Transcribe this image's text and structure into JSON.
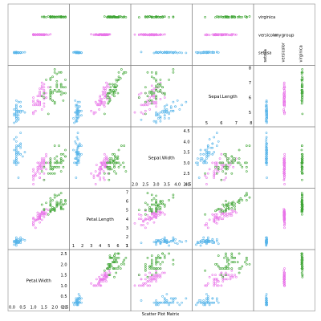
{
  "chart_data": {
    "type": "scatter",
    "subtype": "scatter-plot-matrix",
    "xlabel": "Scatter Plot Matrix",
    "grid": false,
    "variables": [
      {
        "key": "PetalWidth",
        "label": "Petal.Width",
        "range": [
          0,
          2.5
        ],
        "ticks": [
          {
            "v": 0,
            "t": "0.0"
          },
          {
            "v": 0.5,
            "t": "0.5"
          },
          {
            "v": 1.0,
            "t": "1.0"
          },
          {
            "v": 1.5,
            "t": "1.5"
          },
          {
            "v": 2.0,
            "t": "2.0"
          },
          {
            "v": 2.5,
            "t": "2.5"
          }
        ]
      },
      {
        "key": "PetalLength",
        "label": "Petal.Length",
        "range": [
          1,
          7
        ],
        "ticks": [
          {
            "v": 1,
            "t": "1"
          },
          {
            "v": 2,
            "t": "2"
          },
          {
            "v": 3,
            "t": "3"
          },
          {
            "v": 4,
            "t": "4"
          },
          {
            "v": 5,
            "t": "5"
          },
          {
            "v": 6,
            "t": "6"
          },
          {
            "v": 7,
            "t": "7"
          }
        ]
      },
      {
        "key": "SepalWidth",
        "label": "Sepal.Width",
        "range": [
          2.0,
          4.5
        ],
        "ticks": [
          {
            "v": 2.0,
            "t": "2.0"
          },
          {
            "v": 2.5,
            "t": "2.5"
          },
          {
            "v": 3.0,
            "t": "3.0"
          },
          {
            "v": 3.5,
            "t": "3.5"
          },
          {
            "v": 4.0,
            "t": "4.0"
          },
          {
            "v": 4.5,
            "t": "4.5"
          }
        ]
      },
      {
        "key": "SepalLength",
        "label": "Sepal.Length",
        "range": [
          4.3,
          7.9
        ],
        "ticks": [
          {
            "v": 5,
            "t": "5"
          },
          {
            "v": 6,
            "t": "6"
          },
          {
            "v": 7,
            "t": "7"
          },
          {
            "v": 8,
            "t": "8"
          }
        ]
      },
      {
        "key": "mygroup",
        "label": "mygroup",
        "range": [
          0.5,
          3.5
        ],
        "categorical": true,
        "ticks": [
          {
            "v": 1,
            "t": "setosa"
          },
          {
            "v": 2,
            "t": "versicolor"
          },
          {
            "v": 3,
            "t": "virginica"
          }
        ]
      }
    ],
    "groups": [
      {
        "name": "setosa",
        "color": "#56B4E9"
      },
      {
        "name": "versicolor",
        "color": "#E873E8"
      },
      {
        "name": "virginica",
        "color": "#3FA535"
      }
    ],
    "series": [
      {
        "name": "setosa",
        "n": 50,
        "SepalLength": [
          5.1,
          4.9,
          4.7,
          4.6,
          5.0,
          5.4,
          4.6,
          5.0,
          4.4,
          4.9,
          5.4,
          4.8,
          4.8,
          4.3,
          5.8,
          5.7,
          5.4,
          5.1,
          5.7,
          5.1,
          5.4,
          5.1,
          4.6,
          5.1,
          4.8,
          5.0,
          5.0,
          5.2,
          5.2,
          4.7,
          4.8,
          5.4,
          5.2,
          5.5,
          4.9,
          5.0,
          5.5,
          4.9,
          4.4,
          5.1,
          5.0,
          4.5,
          4.4,
          5.0,
          5.1,
          4.8,
          5.1,
          4.6,
          5.3,
          5.0
        ],
        "SepalWidth": [
          3.5,
          3.0,
          3.2,
          3.1,
          3.6,
          3.9,
          3.4,
          3.4,
          2.9,
          3.1,
          3.7,
          3.4,
          3.0,
          3.0,
          4.0,
          4.4,
          3.9,
          3.5,
          3.8,
          3.8,
          3.4,
          3.7,
          3.6,
          3.3,
          3.4,
          3.0,
          3.4,
          3.5,
          3.4,
          3.2,
          3.1,
          3.4,
          4.1,
          4.2,
          3.1,
          3.2,
          3.5,
          3.6,
          3.0,
          3.4,
          3.5,
          2.3,
          3.2,
          3.5,
          3.8,
          3.0,
          3.8,
          3.2,
          3.7,
          3.3
        ],
        "PetalLength": [
          1.4,
          1.4,
          1.3,
          1.5,
          1.4,
          1.7,
          1.4,
          1.5,
          1.4,
          1.5,
          1.5,
          1.6,
          1.4,
          1.1,
          1.2,
          1.5,
          1.3,
          1.4,
          1.7,
          1.5,
          1.7,
          1.5,
          1.0,
          1.7,
          1.9,
          1.6,
          1.6,
          1.5,
          1.4,
          1.6,
          1.6,
          1.5,
          1.5,
          1.4,
          1.5,
          1.2,
          1.3,
          1.4,
          1.3,
          1.5,
          1.3,
          1.3,
          1.3,
          1.6,
          1.9,
          1.4,
          1.6,
          1.4,
          1.5,
          1.4
        ],
        "PetalWidth": [
          0.2,
          0.2,
          0.2,
          0.2,
          0.2,
          0.4,
          0.3,
          0.2,
          0.2,
          0.1,
          0.2,
          0.2,
          0.1,
          0.1,
          0.2,
          0.4,
          0.4,
          0.3,
          0.3,
          0.3,
          0.2,
          0.4,
          0.2,
          0.5,
          0.2,
          0.2,
          0.4,
          0.2,
          0.2,
          0.2,
          0.2,
          0.4,
          0.1,
          0.2,
          0.2,
          0.2,
          0.2,
          0.1,
          0.2,
          0.2,
          0.3,
          0.3,
          0.2,
          0.6,
          0.4,
          0.3,
          0.2,
          0.2,
          0.2,
          0.2
        ]
      },
      {
        "name": "versicolor",
        "n": 50,
        "SepalLength": [
          7.0,
          6.4,
          6.9,
          5.5,
          6.5,
          5.7,
          6.3,
          4.9,
          6.6,
          5.2,
          5.0,
          5.9,
          6.0,
          6.1,
          5.6,
          6.7,
          5.6,
          5.8,
          6.2,
          5.6,
          5.9,
          6.1,
          6.3,
          6.1,
          6.4,
          6.6,
          6.8,
          6.7,
          6.0,
          5.7,
          5.5,
          5.5,
          5.8,
          6.0,
          5.4,
          6.0,
          6.7,
          6.3,
          5.6,
          5.5,
          5.5,
          6.1,
          5.8,
          5.0,
          5.6,
          5.7,
          5.7,
          6.2,
          5.1,
          5.7
        ],
        "SepalWidth": [
          3.2,
          3.2,
          3.1,
          2.3,
          2.8,
          2.8,
          3.3,
          2.4,
          2.9,
          2.7,
          2.0,
          3.0,
          2.2,
          2.9,
          2.9,
          3.1,
          3.0,
          2.7,
          2.2,
          2.5,
          3.2,
          2.8,
          2.5,
          2.8,
          2.9,
          3.0,
          2.8,
          3.0,
          2.9,
          2.6,
          2.4,
          2.4,
          2.7,
          2.7,
          3.0,
          3.4,
          3.1,
          2.3,
          3.0,
          2.5,
          2.6,
          3.0,
          2.6,
          2.3,
          2.7,
          3.0,
          2.9,
          2.9,
          2.5,
          2.8
        ],
        "PetalLength": [
          4.7,
          4.5,
          4.9,
          4.0,
          4.6,
          4.5,
          4.7,
          3.3,
          4.6,
          3.9,
          3.5,
          4.2,
          4.0,
          4.7,
          3.6,
          4.4,
          4.5,
          4.1,
          4.5,
          3.9,
          4.8,
          4.0,
          4.9,
          4.7,
          4.3,
          4.4,
          4.8,
          5.0,
          4.5,
          3.5,
          3.8,
          3.7,
          3.9,
          5.1,
          4.5,
          4.5,
          4.7,
          4.4,
          4.1,
          4.0,
          4.4,
          4.6,
          4.0,
          3.3,
          4.2,
          4.2,
          4.2,
          4.3,
          3.0,
          4.1
        ],
        "PetalWidth": [
          1.4,
          1.5,
          1.5,
          1.3,
          1.5,
          1.3,
          1.6,
          1.0,
          1.3,
          1.4,
          1.0,
          1.5,
          1.0,
          1.4,
          1.3,
          1.4,
          1.5,
          1.0,
          1.5,
          1.1,
          1.8,
          1.3,
          1.5,
          1.2,
          1.3,
          1.4,
          1.4,
          1.7,
          1.5,
          1.0,
          1.1,
          1.0,
          1.2,
          1.6,
          1.5,
          1.6,
          1.5,
          1.3,
          1.3,
          1.3,
          1.2,
          1.4,
          1.2,
          1.0,
          1.3,
          1.2,
          1.3,
          1.3,
          1.1,
          1.3
        ]
      },
      {
        "name": "virginica",
        "n": 50,
        "SepalLength": [
          6.3,
          5.8,
          7.1,
          6.3,
          6.5,
          7.6,
          4.9,
          7.3,
          6.7,
          7.2,
          6.5,
          6.4,
          6.8,
          5.7,
          5.8,
          6.4,
          6.5,
          7.7,
          7.7,
          6.0,
          6.9,
          5.6,
          7.7,
          6.3,
          6.7,
          7.2,
          6.2,
          6.1,
          6.4,
          7.2,
          7.4,
          7.9,
          6.4,
          6.3,
          6.1,
          7.7,
          6.3,
          6.4,
          6.0,
          6.9,
          6.7,
          6.9,
          5.8,
          6.8,
          6.7,
          6.7,
          6.3,
          6.5,
          6.2,
          5.9
        ],
        "SepalWidth": [
          3.3,
          2.7,
          3.0,
          2.9,
          3.0,
          3.0,
          2.5,
          2.9,
          2.5,
          3.6,
          3.2,
          2.7,
          3.0,
          2.5,
          2.8,
          3.2,
          3.0,
          3.8,
          2.6,
          2.2,
          3.2,
          2.8,
          2.8,
          2.7,
          3.3,
          3.2,
          2.8,
          3.0,
          2.8,
          3.0,
          2.8,
          3.8,
          2.8,
          2.8,
          2.6,
          3.0,
          3.4,
          3.1,
          3.0,
          3.1,
          3.1,
          3.1,
          2.7,
          3.2,
          3.3,
          3.0,
          2.5,
          3.0,
          3.4,
          3.0
        ],
        "PetalLength": [
          6.0,
          5.1,
          5.9,
          5.6,
          5.8,
          6.6,
          4.5,
          6.3,
          5.8,
          6.1,
          5.1,
          5.3,
          5.5,
          5.0,
          5.1,
          5.3,
          5.5,
          6.7,
          6.9,
          5.0,
          5.7,
          4.9,
          6.7,
          4.9,
          5.7,
          6.0,
          4.8,
          4.9,
          5.6,
          5.8,
          6.1,
          6.4,
          5.6,
          5.1,
          5.6,
          6.1,
          5.6,
          5.5,
          4.8,
          5.4,
          5.6,
          5.1,
          5.1,
          5.9,
          5.7,
          5.2,
          5.0,
          5.2,
          5.4,
          5.1
        ],
        "PetalWidth": [
          2.5,
          1.9,
          2.1,
          1.8,
          2.2,
          2.1,
          1.7,
          1.8,
          1.8,
          2.5,
          2.0,
          1.9,
          2.1,
          2.0,
          2.4,
          2.3,
          1.8,
          2.2,
          2.3,
          1.5,
          2.3,
          2.0,
          2.0,
          1.8,
          2.1,
          1.8,
          1.8,
          1.8,
          2.1,
          1.6,
          1.9,
          2.0,
          2.2,
          1.5,
          1.4,
          2.3,
          2.4,
          1.8,
          1.8,
          2.1,
          2.4,
          2.3,
          1.9,
          2.3,
          2.5,
          2.3,
          1.9,
          2.0,
          2.3,
          1.8
        ]
      }
    ]
  }
}
